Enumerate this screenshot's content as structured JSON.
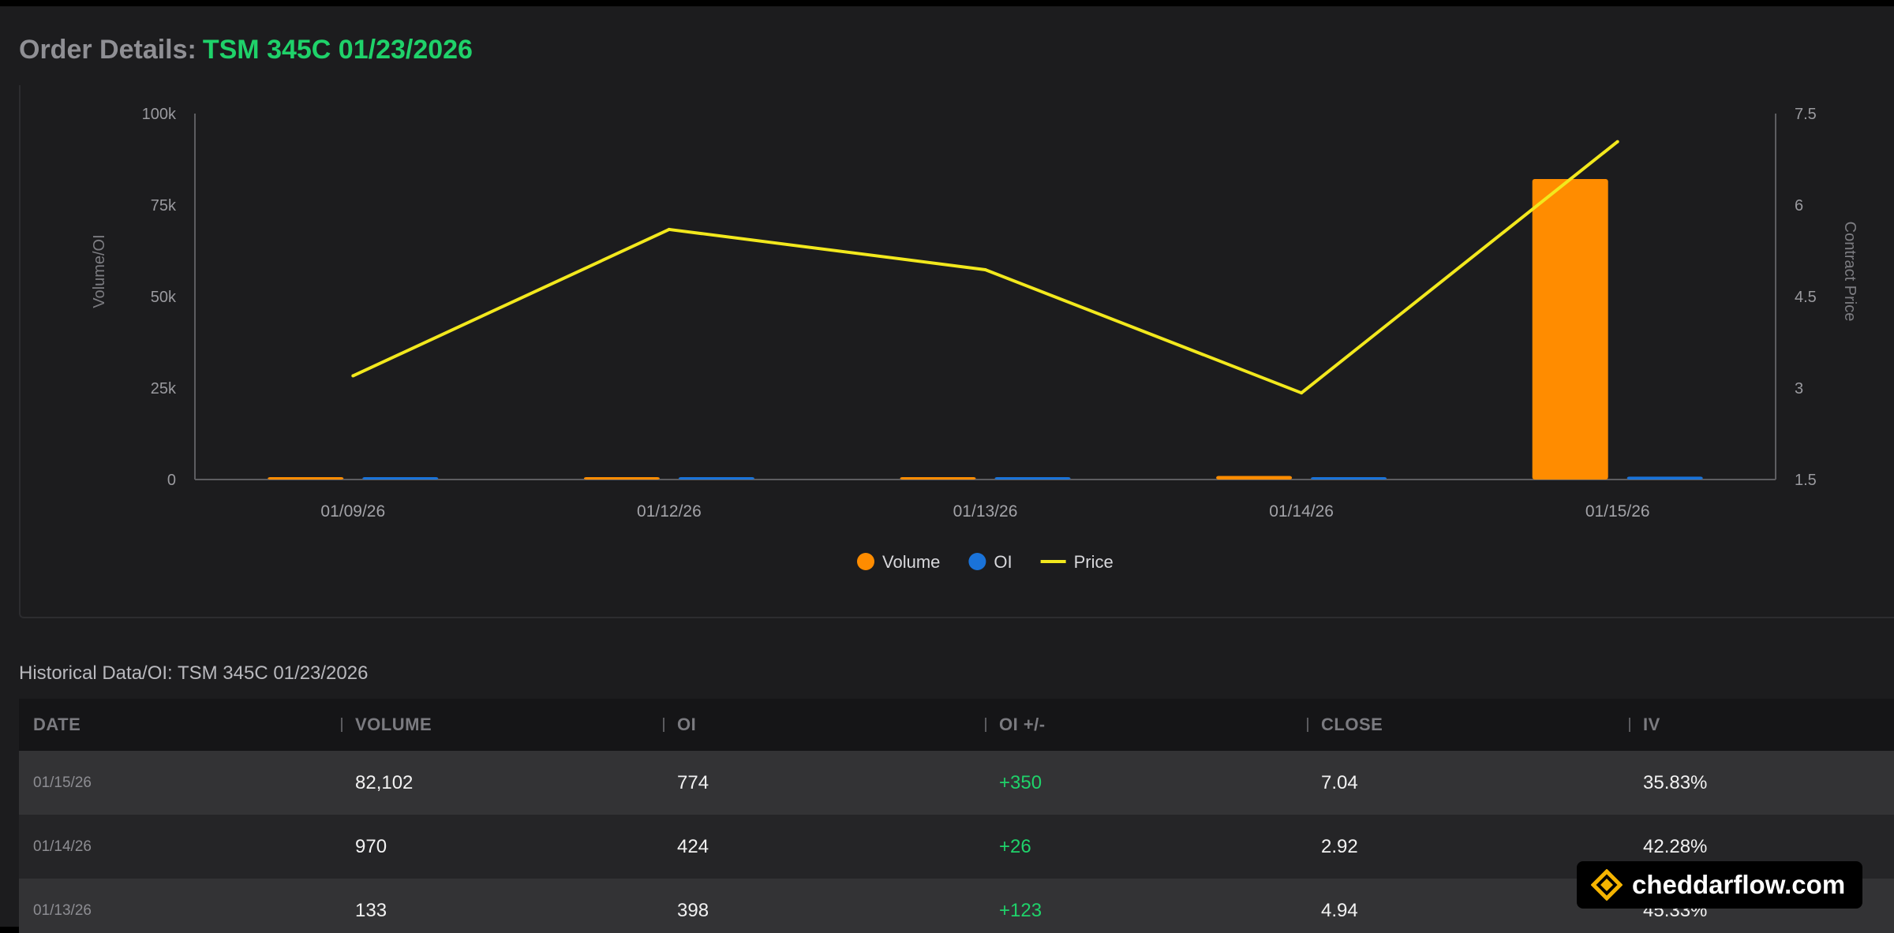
{
  "header": {
    "label": "Order Details:",
    "contract": "TSM 345C 01/23/2026"
  },
  "chart_data": {
    "type": "bar",
    "title": "",
    "categories": [
      "01/09/26",
      "01/12/26",
      "01/13/26",
      "01/14/26",
      "01/15/26"
    ],
    "series": [
      {
        "name": "Volume",
        "type": "bar",
        "axis": "left",
        "color": "#ff8c00",
        "values": [
          0,
          0,
          133,
          970,
          82102
        ]
      },
      {
        "name": "OI",
        "type": "bar",
        "axis": "left",
        "color": "#1a73d9",
        "values": [
          0,
          0,
          398,
          424,
          774
        ]
      },
      {
        "name": "Price",
        "type": "line",
        "axis": "right",
        "color": "#f2e81d",
        "values": [
          3.2,
          5.6,
          4.94,
          2.92,
          7.04
        ]
      }
    ],
    "ylabel": "Volume/OI",
    "ylabel_right": "Contract Price",
    "ylim": [
      0,
      100000
    ],
    "ylim_right": [
      1.5,
      7.5
    ],
    "yticks": [
      "100k",
      "75k",
      "50k",
      "25k",
      "0"
    ],
    "yticks_right": [
      "7.5",
      "6",
      "4.5",
      "3",
      "1.5"
    ],
    "grid": false,
    "legend_position": "bottom-center"
  },
  "table": {
    "title": "Historical Data/OI: TSM 345C 01/23/2026",
    "columns": [
      "DATE",
      "VOLUME",
      "OI",
      "OI +/-",
      "CLOSE",
      "IV"
    ],
    "rows": [
      [
        "01/15/26",
        "82,102",
        "774",
        "+350",
        "7.04",
        "35.83%"
      ],
      [
        "01/14/26",
        "970",
        "424",
        "+26",
        "2.92",
        "42.28%"
      ],
      [
        "01/13/26",
        "133",
        "398",
        "+123",
        "4.94",
        "45.33%"
      ]
    ]
  },
  "brand": {
    "name": "cheddarflow.com",
    "logo_icon": "cheddarflow-logo-icon",
    "logo_color": "#f5b400"
  },
  "colors": {
    "background": "#1c1c1e",
    "positive": "#1fd26a",
    "volume": "#ff8c00",
    "oi": "#1a73d9",
    "price": "#f2e81d"
  }
}
